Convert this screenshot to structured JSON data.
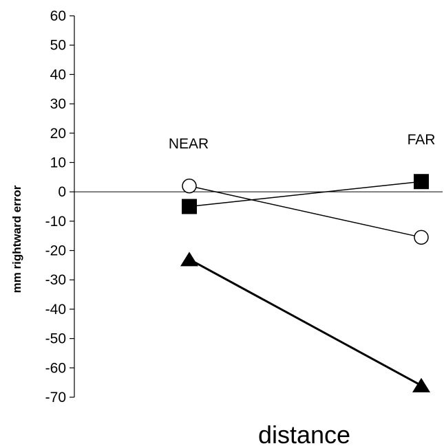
{
  "chart_data": {
    "type": "line",
    "title": "",
    "xlabel": "distance",
    "ylabel": "mm rightward error",
    "categories": [
      "NEAR",
      "FAR"
    ],
    "yticks": [
      "60",
      "50",
      "40",
      "30",
      "20",
      "10",
      "0",
      "-10",
      "-20",
      "-30",
      "-40",
      "-50",
      "-60",
      "-70"
    ],
    "ylim": [
      -70,
      60
    ],
    "zero_line": true,
    "grid": false,
    "legend": "none",
    "series": [
      {
        "marker": "open-circle",
        "values": [
          2,
          -15.5
        ],
        "line_weight": "thin",
        "color": "#000000"
      },
      {
        "marker": "filled-square",
        "values": [
          -5,
          3.5
        ],
        "line_weight": "thin",
        "color": "#000000"
      },
      {
        "marker": "filled-triangle",
        "values": [
          -23,
          -66
        ],
        "line_weight": "thick",
        "color": "#000000"
      }
    ]
  }
}
